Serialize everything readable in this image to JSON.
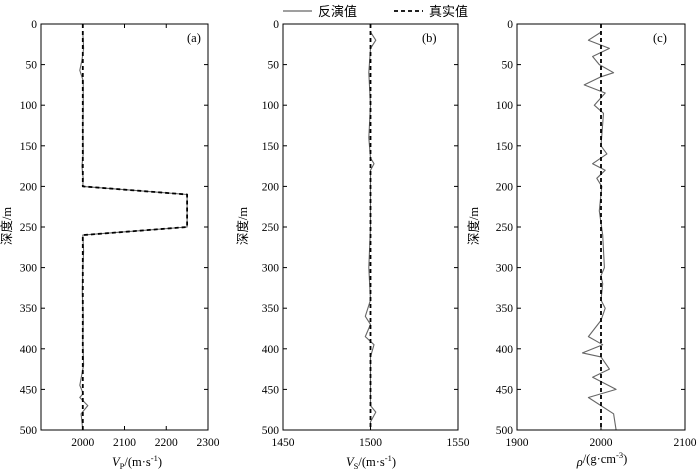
{
  "legend": {
    "inversion": "反演值",
    "true": "真实值"
  },
  "chart_data": [
    {
      "type": "line",
      "panel_label": "(a)",
      "ylabel": "深度/m",
      "xlabel_symbol": "V",
      "xlabel_sub": "P",
      "xlabel_rest": "/(m·s",
      "xlabel_sup": "-1",
      "xlabel_end": ")",
      "xlim": [
        1900,
        2300
      ],
      "xticks": [
        2000,
        2100,
        2200,
        2300
      ],
      "ylim": [
        0,
        500
      ],
      "yticks": [
        0,
        50,
        100,
        150,
        200,
        250,
        300,
        350,
        400,
        450,
        500
      ],
      "y_inverted": true,
      "series": [
        {
          "name": "反演值",
          "style": "solid",
          "color": "#666666",
          "points": [
            [
              2000,
              10
            ],
            [
              2002,
              30
            ],
            [
              1998,
              45
            ],
            [
              1993,
              57
            ],
            [
              2001,
              70
            ],
            [
              2001,
              100
            ],
            [
              2000,
              130
            ],
            [
              2001,
              160
            ],
            [
              1998,
              175
            ],
            [
              2001,
              190
            ],
            [
              2000,
              200
            ],
            [
              2250,
              210
            ],
            [
              2250,
              250
            ],
            [
              2000,
              260
            ],
            [
              2002,
              280
            ],
            [
              2000,
              300
            ],
            [
              1999,
              330
            ],
            [
              2001,
              360
            ],
            [
              2000,
              390
            ],
            [
              2002,
              420
            ],
            [
              1993,
              445
            ],
            [
              2001,
              455
            ],
            [
              1993,
              460
            ],
            [
              2012,
              470
            ],
            [
              1996,
              480
            ],
            [
              2000,
              500
            ]
          ]
        },
        {
          "name": "真实值",
          "style": "dashed",
          "color": "#000000",
          "points": [
            [
              2000,
              0
            ],
            [
              2000,
              200
            ],
            [
              2250,
              210
            ],
            [
              2250,
              250
            ],
            [
              2000,
              260
            ],
            [
              2000,
              500
            ]
          ]
        }
      ]
    },
    {
      "type": "line",
      "panel_label": "(b)",
      "ylabel": "深度/m",
      "xlabel_symbol": "V",
      "xlabel_sub": "S",
      "xlabel_rest": "/(m·s",
      "xlabel_sup": "-1",
      "xlabel_end": ")",
      "xlim": [
        1450,
        1550
      ],
      "xticks": [
        1450,
        1500,
        1550
      ],
      "ylim": [
        0,
        500
      ],
      "yticks": [
        0,
        50,
        100,
        150,
        200,
        250,
        300,
        350,
        400,
        450,
        500
      ],
      "y_inverted": true,
      "series": [
        {
          "name": "反演值",
          "style": "solid",
          "color": "#666666",
          "points": [
            [
              1500,
              10
            ],
            [
              1503,
              20
            ],
            [
              1500,
              30
            ],
            [
              1499,
              60
            ],
            [
              1500,
              100
            ],
            [
              1499,
              140
            ],
            [
              1500,
              165
            ],
            [
              1502,
              172
            ],
            [
              1500,
              180
            ],
            [
              1500,
              250
            ],
            [
              1499,
              300
            ],
            [
              1500,
              340
            ],
            [
              1497,
              360
            ],
            [
              1500,
              370
            ],
            [
              1497,
              385
            ],
            [
              1502,
              395
            ],
            [
              1500,
              410
            ],
            [
              1500,
              455
            ],
            [
              1500,
              470
            ],
            [
              1503,
              478
            ],
            [
              1500,
              490
            ],
            [
              1500,
              500
            ]
          ]
        },
        {
          "name": "真实值",
          "style": "dashed",
          "color": "#000000",
          "points": [
            [
              1500,
              0
            ],
            [
              1500,
              500
            ]
          ]
        }
      ]
    },
    {
      "type": "line",
      "panel_label": "(c)",
      "ylabel": "深度/m",
      "xlabel_symbol": "ρ",
      "xlabel_sub": "",
      "xlabel_rest": "/(g·cm",
      "xlabel_sup": "-3",
      "xlabel_end": ")",
      "xlim": [
        1900,
        2100
      ],
      "xticks": [
        1900,
        2000,
        2100
      ],
      "ylim": [
        0,
        500
      ],
      "yticks": [
        0,
        50,
        100,
        150,
        200,
        250,
        300,
        350,
        400,
        450,
        500
      ],
      "y_inverted": true,
      "series": [
        {
          "name": "反演值",
          "style": "solid",
          "color": "#666666",
          "points": [
            [
              2000,
              10
            ],
            [
              1985,
              20
            ],
            [
              2010,
              30
            ],
            [
              1990,
              40
            ],
            [
              1998,
              50
            ],
            [
              2015,
              60
            ],
            [
              2000,
              65
            ],
            [
              1980,
              75
            ],
            [
              2005,
              85
            ],
            [
              1992,
              100
            ],
            [
              2003,
              110
            ],
            [
              2000,
              150
            ],
            [
              2007,
              160
            ],
            [
              1990,
              172
            ],
            [
              2005,
              180
            ],
            [
              1995,
              190
            ],
            [
              2001,
              200
            ],
            [
              1998,
              230
            ],
            [
              2002,
              260
            ],
            [
              2004,
              300
            ],
            [
              2000,
              310
            ],
            [
              2002,
              320
            ],
            [
              2000,
              340
            ],
            [
              2005,
              350
            ],
            [
              2000,
              365
            ],
            [
              1985,
              385
            ],
            [
              2002,
              395
            ],
            [
              1978,
              405
            ],
            [
              2000,
              410
            ],
            [
              2010,
              425
            ],
            [
              1990,
              435
            ],
            [
              2018,
              450
            ],
            [
              1985,
              460
            ],
            [
              2015,
              480
            ],
            [
              2018,
              500
            ]
          ]
        },
        {
          "name": "真实值",
          "style": "dashed",
          "color": "#000000",
          "points": [
            [
              2000,
              0
            ],
            [
              2000,
              500
            ]
          ]
        }
      ]
    }
  ]
}
